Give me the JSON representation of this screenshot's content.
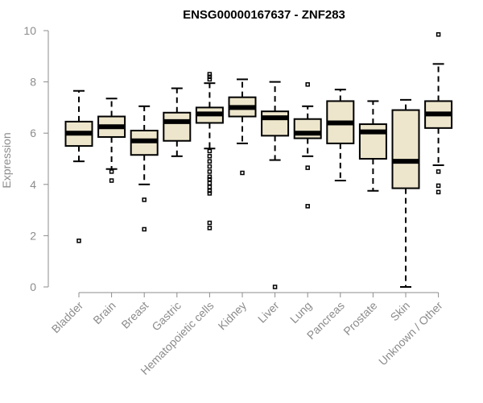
{
  "chart_data": {
    "type": "box",
    "title": "ENSG00000167637 - ZNF283",
    "xlabel": "",
    "ylabel": "Expression",
    "ylim": [
      0,
      10
    ],
    "yticks": [
      0,
      2,
      4,
      6,
      8,
      10
    ],
    "grid": false,
    "fill_color": "#ede6cc",
    "categories": [
      "Bladder",
      "Brain",
      "Breast",
      "Gastric",
      "Hematopoietic cells",
      "Kidney",
      "Liver",
      "Lung",
      "Pancreas",
      "Prostate",
      "Skin",
      "Unknown / Other"
    ],
    "boxes": [
      {
        "whisker_low": 4.9,
        "q1": 5.5,
        "median": 6.0,
        "q3": 6.45,
        "whisker_high": 7.65,
        "outliers": [
          1.8
        ]
      },
      {
        "whisker_low": 4.6,
        "q1": 5.85,
        "median": 6.25,
        "q3": 6.65,
        "whisker_high": 7.35,
        "outliers": [
          4.5,
          4.15
        ]
      },
      {
        "whisker_low": 4.0,
        "q1": 5.15,
        "median": 5.7,
        "q3": 6.1,
        "whisker_high": 7.05,
        "outliers": [
          3.4,
          2.25
        ]
      },
      {
        "whisker_low": 5.1,
        "q1": 5.7,
        "median": 6.45,
        "q3": 6.8,
        "whisker_high": 7.75,
        "outliers": []
      },
      {
        "whisker_low": 5.4,
        "q1": 6.4,
        "median": 6.75,
        "q3": 7.0,
        "whisker_high": 7.95,
        "outliers": [
          8.3,
          8.2,
          8.1,
          5.3,
          5.1,
          4.9,
          4.7,
          4.5,
          4.3,
          4.2,
          4.05,
          3.9,
          3.75,
          3.65,
          2.5,
          2.3
        ]
      },
      {
        "whisker_low": 5.6,
        "q1": 6.65,
        "median": 7.0,
        "q3": 7.4,
        "whisker_high": 8.1,
        "outliers": [
          4.45
        ]
      },
      {
        "whisker_low": 4.95,
        "q1": 5.9,
        "median": 6.6,
        "q3": 6.85,
        "whisker_high": 8.0,
        "outliers": [
          0.0
        ]
      },
      {
        "whisker_low": 5.1,
        "q1": 5.8,
        "median": 6.0,
        "q3": 6.55,
        "whisker_high": 7.05,
        "outliers": [
          7.9,
          4.65,
          3.15
        ]
      },
      {
        "whisker_low": 4.15,
        "q1": 5.6,
        "median": 6.4,
        "q3": 7.25,
        "whisker_high": 7.7,
        "outliers": []
      },
      {
        "whisker_low": 3.75,
        "q1": 5.0,
        "median": 6.05,
        "q3": 6.35,
        "whisker_high": 7.25,
        "outliers": []
      },
      {
        "whisker_low": 0.0,
        "q1": 3.85,
        "median": 4.9,
        "q3": 6.9,
        "whisker_high": 7.3,
        "outliers": []
      },
      {
        "whisker_low": 4.75,
        "q1": 6.2,
        "median": 6.75,
        "q3": 7.25,
        "whisker_high": 8.7,
        "outliers": [
          9.85,
          4.5,
          3.95,
          3.7
        ]
      }
    ]
  }
}
